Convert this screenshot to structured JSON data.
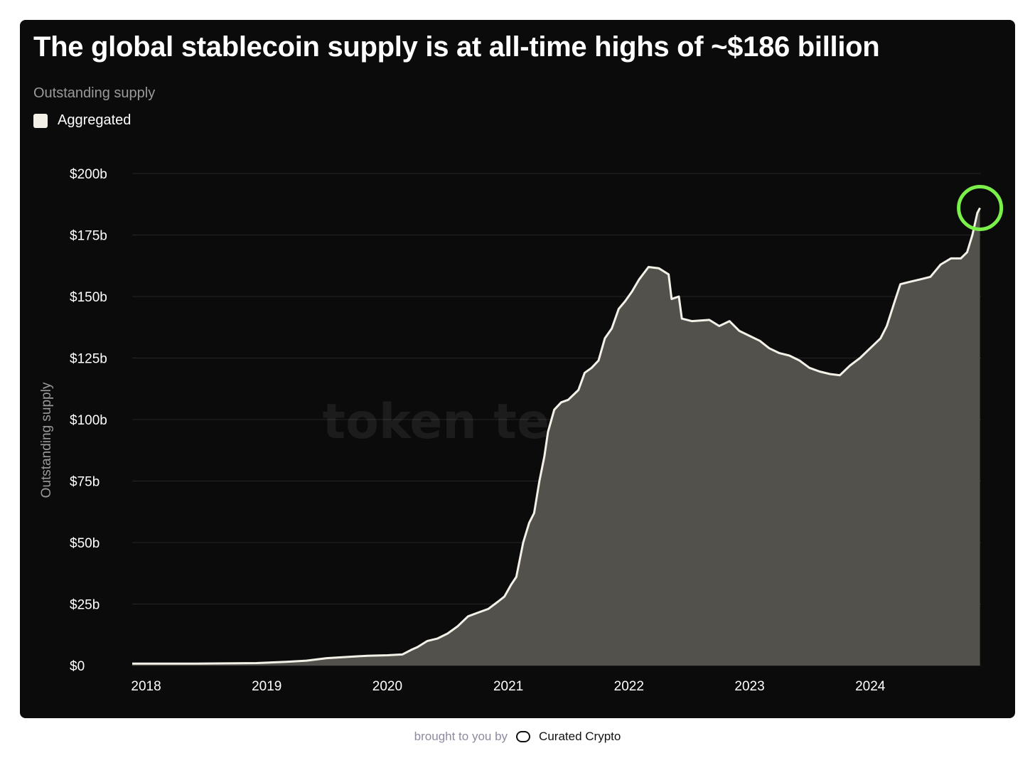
{
  "header": {
    "title": "The global stablecoin supply is at all-time highs of ~$186 billion",
    "subtitle": "Outstanding supply"
  },
  "watermark": "token terminal",
  "footer": {
    "lead": "brought to you by",
    "brand": "Curated Crypto",
    "logo_icon": "curated-crypto-logo-icon"
  },
  "colors": {
    "background": "#0b0b0b",
    "line": "#f4f2e8",
    "area": "#52514b",
    "highlight": "#7cf04a"
  },
  "chart_data": {
    "type": "area",
    "title": "The global stablecoin supply is at all-time highs of ~$186 billion",
    "subtitle": "Outstanding supply",
    "ylabel": "Outstanding supply",
    "xlabel": "",
    "ylim": [
      0,
      200
    ],
    "y_unit": "billions USD",
    "y_ticks": [
      {
        "value": 0,
        "label": "$0"
      },
      {
        "value": 25,
        "label": "$25b"
      },
      {
        "value": 50,
        "label": "$50b"
      },
      {
        "value": 75,
        "label": "$75b"
      },
      {
        "value": 100,
        "label": "$100b"
      },
      {
        "value": 125,
        "label": "$125b"
      },
      {
        "value": 150,
        "label": "$150b"
      },
      {
        "value": 175,
        "label": "$175b"
      },
      {
        "value": 200,
        "label": "$200b"
      }
    ],
    "x_range": [
      "2017-11-20",
      "2024-12-01"
    ],
    "x_ticks": [
      {
        "value": "2018-01-01",
        "label": "2018"
      },
      {
        "value": "2019-01-01",
        "label": "2019"
      },
      {
        "value": "2020-01-01",
        "label": "2020"
      },
      {
        "value": "2021-01-01",
        "label": "2021"
      },
      {
        "value": "2022-01-01",
        "label": "2022"
      },
      {
        "value": "2023-01-01",
        "label": "2023"
      },
      {
        "value": "2024-01-01",
        "label": "2024"
      }
    ],
    "grid": true,
    "legend": {
      "position": "top-left",
      "entries": [
        "Aggregated"
      ]
    },
    "highlight": {
      "x": "2024-11-28",
      "y": 186,
      "shape": "circle"
    },
    "series": [
      {
        "name": "Aggregated",
        "points": [
          [
            "2017-11-20",
            0.8
          ],
          [
            "2018-06-01",
            0.8
          ],
          [
            "2018-12-01",
            1.0
          ],
          [
            "2019-03-01",
            1.5
          ],
          [
            "2019-05-01",
            2.0
          ],
          [
            "2019-07-01",
            3.0
          ],
          [
            "2019-09-01",
            3.5
          ],
          [
            "2019-11-01",
            4.0
          ],
          [
            "2020-01-01",
            4.2
          ],
          [
            "2020-02-15",
            4.5
          ],
          [
            "2020-03-15",
            6.5
          ],
          [
            "2020-04-01",
            7.5
          ],
          [
            "2020-05-01",
            10.0
          ],
          [
            "2020-06-01",
            11.0
          ],
          [
            "2020-07-01",
            13.0
          ],
          [
            "2020-08-01",
            16.0
          ],
          [
            "2020-09-01",
            20.0
          ],
          [
            "2020-10-01",
            21.5
          ],
          [
            "2020-11-01",
            23.0
          ],
          [
            "2020-12-01",
            26.0
          ],
          [
            "2020-12-20",
            28.0
          ],
          [
            "2021-01-10",
            33.0
          ],
          [
            "2021-01-25",
            36.0
          ],
          [
            "2021-02-15",
            50.0
          ],
          [
            "2021-03-05",
            58.0
          ],
          [
            "2021-03-20",
            62.0
          ],
          [
            "2021-04-05",
            75.0
          ],
          [
            "2021-04-20",
            85.0
          ],
          [
            "2021-05-01",
            95.0
          ],
          [
            "2021-05-20",
            104.0
          ],
          [
            "2021-06-10",
            107.0
          ],
          [
            "2021-07-01",
            108.0
          ],
          [
            "2021-08-01",
            112.0
          ],
          [
            "2021-08-20",
            119.0
          ],
          [
            "2021-09-10",
            121.0
          ],
          [
            "2021-10-01",
            124.0
          ],
          [
            "2021-10-20",
            133.0
          ],
          [
            "2021-11-10",
            137.0
          ],
          [
            "2021-12-01",
            145.0
          ],
          [
            "2021-12-20",
            148.0
          ],
          [
            "2022-01-10",
            152.0
          ],
          [
            "2022-02-01",
            157.0
          ],
          [
            "2022-03-01",
            162.0
          ],
          [
            "2022-04-01",
            161.5
          ],
          [
            "2022-05-01",
            159.0
          ],
          [
            "2022-05-10",
            149.0
          ],
          [
            "2022-06-01",
            150.0
          ],
          [
            "2022-06-10",
            141.0
          ],
          [
            "2022-07-10",
            140.0
          ],
          [
            "2022-09-01",
            140.5
          ],
          [
            "2022-10-01",
            138.0
          ],
          [
            "2022-11-01",
            140.0
          ],
          [
            "2022-12-01",
            136.0
          ],
          [
            "2023-01-01",
            134.0
          ],
          [
            "2023-02-01",
            132.0
          ],
          [
            "2023-03-01",
            129.0
          ],
          [
            "2023-04-01",
            127.0
          ],
          [
            "2023-05-01",
            126.0
          ],
          [
            "2023-06-01",
            124.0
          ],
          [
            "2023-07-01",
            121.0
          ],
          [
            "2023-08-01",
            119.5
          ],
          [
            "2023-09-01",
            118.5
          ],
          [
            "2023-10-01",
            118.0
          ],
          [
            "2023-11-01",
            122.0
          ],
          [
            "2023-12-01",
            125.0
          ],
          [
            "2024-01-01",
            129.0
          ],
          [
            "2024-02-01",
            133.0
          ],
          [
            "2024-02-20",
            138.0
          ],
          [
            "2024-03-15",
            148.0
          ],
          [
            "2024-04-01",
            155.0
          ],
          [
            "2024-05-01",
            156.0
          ],
          [
            "2024-06-01",
            157.0
          ],
          [
            "2024-07-01",
            158.0
          ],
          [
            "2024-08-01",
            163.0
          ],
          [
            "2024-09-01",
            165.5
          ],
          [
            "2024-10-01",
            165.5
          ],
          [
            "2024-10-20",
            168.0
          ],
          [
            "2024-11-05",
            175.0
          ],
          [
            "2024-11-20",
            184.0
          ],
          [
            "2024-11-28",
            186.0
          ]
        ]
      }
    ]
  }
}
